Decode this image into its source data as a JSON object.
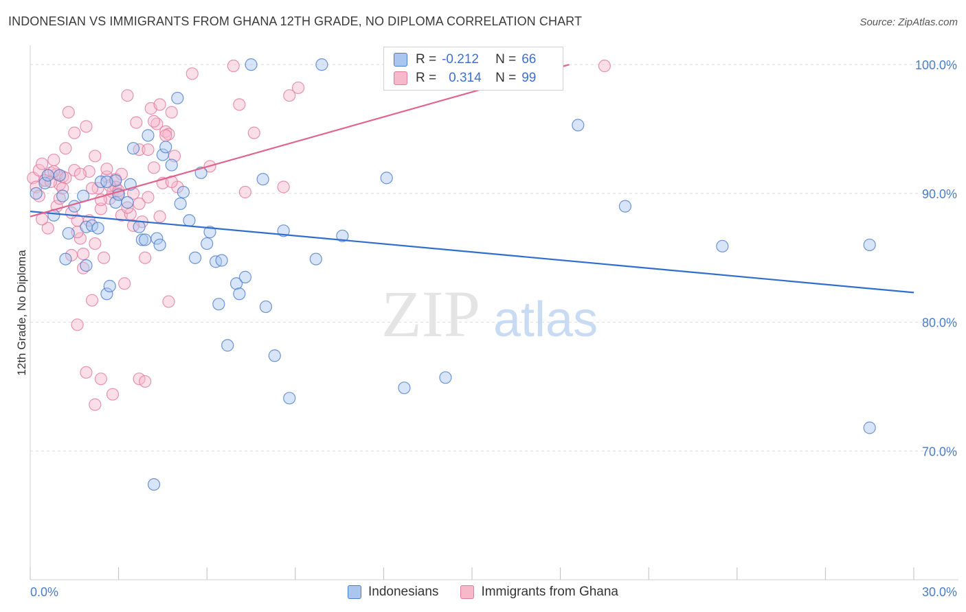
{
  "header": {
    "title": "INDONESIAN VS IMMIGRANTS FROM GHANA 12TH GRADE, NO DIPLOMA CORRELATION CHART",
    "source": "Source: ZipAtlas.com"
  },
  "watermark": {
    "zip": "ZIP",
    "atlas": "atlas"
  },
  "colors": {
    "blue_fill": "#a9c6ef",
    "blue_stroke": "#4a7cc7",
    "blue_line": "#2f6ecf",
    "pink_fill": "#f7b8cc",
    "pink_stroke": "#e07a9c",
    "pink_line": "#e0638e",
    "axis_text": "#4a7cc7",
    "grid": "#dcdcdc"
  },
  "legend": {
    "rows": [
      {
        "r_label": "R =",
        "r_value": "-0.212",
        "n_label": "N =",
        "n_value": "66",
        "series": "blue"
      },
      {
        "r_label": "R =",
        "r_value": "0.314",
        "n_label": "N =",
        "n_value": "99",
        "series": "pink"
      }
    ]
  },
  "bottom_legend": [
    "Indonesians",
    "Immigrants from Ghana"
  ],
  "chart_data": {
    "type": "scatter",
    "title": "INDONESIAN VS IMMIGRANTS FROM GHANA 12TH GRADE, NO DIPLOMA CORRELATION CHART",
    "xlabel": "",
    "ylabel": "12th Grade, No Diploma",
    "xlim": [
      0,
      30
    ],
    "ylim": [
      60,
      101.5
    ],
    "x_tick_labels": [
      "0.0%",
      "30.0%"
    ],
    "y_ticks": [
      70,
      80,
      90,
      100
    ],
    "y_tick_labels": [
      "70.0%",
      "80.0%",
      "90.0%",
      "100.0%"
    ],
    "series": [
      {
        "name": "Indonesians",
        "color": "blue",
        "r": -0.212,
        "n": 66,
        "trend": {
          "x": [
            0,
            30
          ],
          "y": [
            88.6,
            82.3
          ]
        },
        "points": [
          [
            0.2,
            90.0
          ],
          [
            0.5,
            90.8
          ],
          [
            0.8,
            88.3
          ],
          [
            1.0,
            91.4
          ],
          [
            1.3,
            86.9
          ],
          [
            1.2,
            84.9
          ],
          [
            1.5,
            89.0
          ],
          [
            1.8,
            89.8
          ],
          [
            1.9,
            87.4
          ],
          [
            2.1,
            87.5
          ],
          [
            2.3,
            87.3
          ],
          [
            2.4,
            90.9
          ],
          [
            2.6,
            82.2
          ],
          [
            2.7,
            82.8
          ],
          [
            2.9,
            89.3
          ],
          [
            2.9,
            91.0
          ],
          [
            3.0,
            89.9
          ],
          [
            3.4,
            90.7
          ],
          [
            3.5,
            93.5
          ],
          [
            3.7,
            87.4
          ],
          [
            3.8,
            86.4
          ],
          [
            3.9,
            86.4
          ],
          [
            4.0,
            94.5
          ],
          [
            4.3,
            86.5
          ],
          [
            4.4,
            86.0
          ],
          [
            4.5,
            93.0
          ],
          [
            4.6,
            93.6
          ],
          [
            4.8,
            92.2
          ],
          [
            5.0,
            97.4
          ],
          [
            5.1,
            89.2
          ],
          [
            5.2,
            90.1
          ],
          [
            5.4,
            87.9
          ],
          [
            5.8,
            91.6
          ],
          [
            6.0,
            86.1
          ],
          [
            6.1,
            87.0
          ],
          [
            6.3,
            84.7
          ],
          [
            6.4,
            81.4
          ],
          [
            6.5,
            84.8
          ],
          [
            6.7,
            78.2
          ],
          [
            7.0,
            83.0
          ],
          [
            7.1,
            82.2
          ],
          [
            7.3,
            83.5
          ],
          [
            7.5,
            100.0
          ],
          [
            7.9,
            91.1
          ],
          [
            8.0,
            81.2
          ],
          [
            8.3,
            77.4
          ],
          [
            8.6,
            87.1
          ],
          [
            8.8,
            74.1
          ],
          [
            9.7,
            84.9
          ],
          [
            9.9,
            100.0
          ],
          [
            10.6,
            86.7
          ],
          [
            12.1,
            91.2
          ],
          [
            12.7,
            74.9
          ],
          [
            14.1,
            75.7
          ],
          [
            18.6,
            95.3
          ],
          [
            20.2,
            89.0
          ],
          [
            23.5,
            85.9
          ],
          [
            28.5,
            86.0
          ],
          [
            28.5,
            71.8
          ],
          [
            4.2,
            67.4
          ],
          [
            2.6,
            90.9
          ],
          [
            0.6,
            91.4
          ],
          [
            1.1,
            89.8
          ],
          [
            1.9,
            84.4
          ],
          [
            3.3,
            89.3
          ],
          [
            5.6,
            85.0
          ]
        ]
      },
      {
        "name": "Immigrants from Ghana",
        "color": "pink",
        "r": 0.314,
        "n": 99,
        "trend": {
          "x": [
            0,
            18.3
          ],
          "y": [
            88.2,
            100.0
          ]
        },
        "points": [
          [
            0.1,
            91.2
          ],
          [
            0.2,
            90.5
          ],
          [
            0.3,
            91.8
          ],
          [
            0.4,
            92.3
          ],
          [
            0.5,
            91.0
          ],
          [
            0.6,
            87.3
          ],
          [
            0.7,
            91.6
          ],
          [
            0.8,
            92.6
          ],
          [
            0.9,
            89.0
          ],
          [
            1.0,
            90.7
          ],
          [
            1.1,
            91.3
          ],
          [
            1.2,
            93.5
          ],
          [
            1.3,
            96.3
          ],
          [
            1.4,
            85.2
          ],
          [
            1.5,
            91.8
          ],
          [
            1.6,
            87.9
          ],
          [
            1.7,
            86.5
          ],
          [
            1.8,
            84.2
          ],
          [
            1.9,
            95.2
          ],
          [
            2.0,
            91.7
          ],
          [
            2.1,
            81.7
          ],
          [
            2.2,
            92.9
          ],
          [
            2.3,
            90.4
          ],
          [
            2.4,
            88.8
          ],
          [
            2.5,
            85.0
          ],
          [
            2.6,
            91.3
          ],
          [
            2.7,
            89.6
          ],
          [
            2.8,
            90.1
          ],
          [
            2.9,
            91.1
          ],
          [
            3.0,
            90.0
          ],
          [
            3.1,
            88.3
          ],
          [
            3.2,
            83.0
          ],
          [
            3.3,
            97.6
          ],
          [
            3.4,
            88.4
          ],
          [
            3.5,
            90.0
          ],
          [
            3.6,
            95.5
          ],
          [
            3.7,
            93.4
          ],
          [
            3.8,
            87.8
          ],
          [
            3.9,
            85.0
          ],
          [
            4.0,
            89.7
          ],
          [
            4.1,
            96.6
          ],
          [
            4.2,
            92.0
          ],
          [
            4.3,
            95.4
          ],
          [
            4.4,
            88.2
          ],
          [
            4.5,
            90.8
          ],
          [
            4.6,
            94.8
          ],
          [
            4.7,
            94.6
          ],
          [
            4.8,
            96.3
          ],
          [
            4.9,
            92.9
          ],
          [
            5.0,
            90.5
          ],
          [
            1.6,
            79.8
          ],
          [
            1.9,
            76.1
          ],
          [
            2.2,
            73.6
          ],
          [
            2.4,
            75.6
          ],
          [
            2.8,
            74.4
          ],
          [
            3.7,
            75.6
          ],
          [
            3.9,
            75.4
          ],
          [
            4.7,
            81.6
          ],
          [
            5.5,
            99.3
          ],
          [
            6.1,
            92.1
          ],
          [
            6.9,
            99.9
          ],
          [
            7.1,
            96.9
          ],
          [
            7.3,
            90.1
          ],
          [
            7.6,
            94.7
          ],
          [
            8.8,
            97.6
          ],
          [
            9.1,
            98.2
          ],
          [
            8.6,
            90.5
          ],
          [
            19.5,
            99.9
          ],
          [
            0.3,
            89.8
          ],
          [
            0.5,
            91.0
          ],
          [
            0.7,
            90.9
          ],
          [
            0.9,
            91.5
          ],
          [
            1.0,
            89.6
          ],
          [
            1.2,
            91.2
          ],
          [
            1.4,
            88.5
          ],
          [
            1.6,
            87.0
          ],
          [
            1.8,
            85.3
          ],
          [
            2.0,
            87.9
          ],
          [
            2.2,
            86.1
          ],
          [
            2.4,
            89.5
          ],
          [
            2.6,
            91.9
          ],
          [
            2.9,
            90.5
          ],
          [
            3.1,
            91.5
          ],
          [
            3.3,
            88.9
          ],
          [
            3.5,
            87.5
          ],
          [
            3.7,
            89.2
          ],
          [
            4.0,
            93.4
          ],
          [
            4.2,
            95.6
          ],
          [
            4.4,
            96.9
          ],
          [
            4.6,
            94.5
          ],
          [
            4.8,
            90.9
          ],
          [
            0.4,
            88.0
          ],
          [
            0.8,
            91.7
          ],
          [
            1.1,
            90.4
          ],
          [
            1.5,
            94.7
          ],
          [
            1.7,
            91.5
          ],
          [
            2.1,
            90.4
          ],
          [
            2.7,
            90.6
          ],
          [
            3.0,
            90.2
          ]
        ]
      }
    ]
  }
}
